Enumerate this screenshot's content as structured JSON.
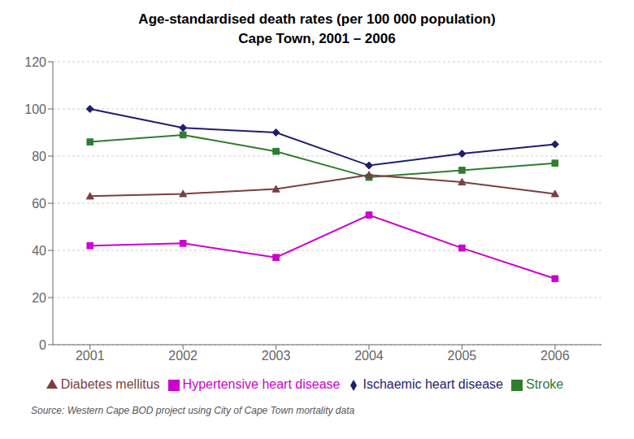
{
  "chart_data": {
    "type": "line",
    "title": "Age-standardised death rates (per 100 000 population)",
    "subtitle": "Cape Town, 2001 – 2006",
    "annotations": [
      "Source: Western Cape BOD project using City of Cape Town mortality data"
    ],
    "x": [
      2001,
      2002,
      2003,
      2004,
      2005,
      2006
    ],
    "series": [
      {
        "name": "Ischaemic heart disease",
        "color": "#1F1F6E",
        "marker": "diamond",
        "values": [
          100,
          92,
          90,
          76,
          81,
          85
        ]
      },
      {
        "name": "Stroke",
        "color": "#2E7D32",
        "marker": "square",
        "values": [
          86,
          89,
          82,
          71,
          74,
          77
        ]
      },
      {
        "name": "Diabetes mellitus",
        "color": "#7B3F3F",
        "marker": "triangle",
        "values": [
          63,
          64,
          66,
          72,
          69,
          64
        ]
      },
      {
        "name": "Hypertensive heart disease",
        "color": "#CC00CC",
        "marker": "square",
        "values": [
          42,
          43,
          37,
          55,
          41,
          28
        ]
      }
    ],
    "xlim": [
      2000.6,
      2006.5
    ],
    "xticks": [
      2001,
      2002,
      2003,
      2004,
      2005,
      2006
    ],
    "ylim": [
      0,
      120
    ],
    "yticks": [
      0,
      20,
      40,
      60,
      80,
      100,
      120
    ],
    "grid": true
  }
}
